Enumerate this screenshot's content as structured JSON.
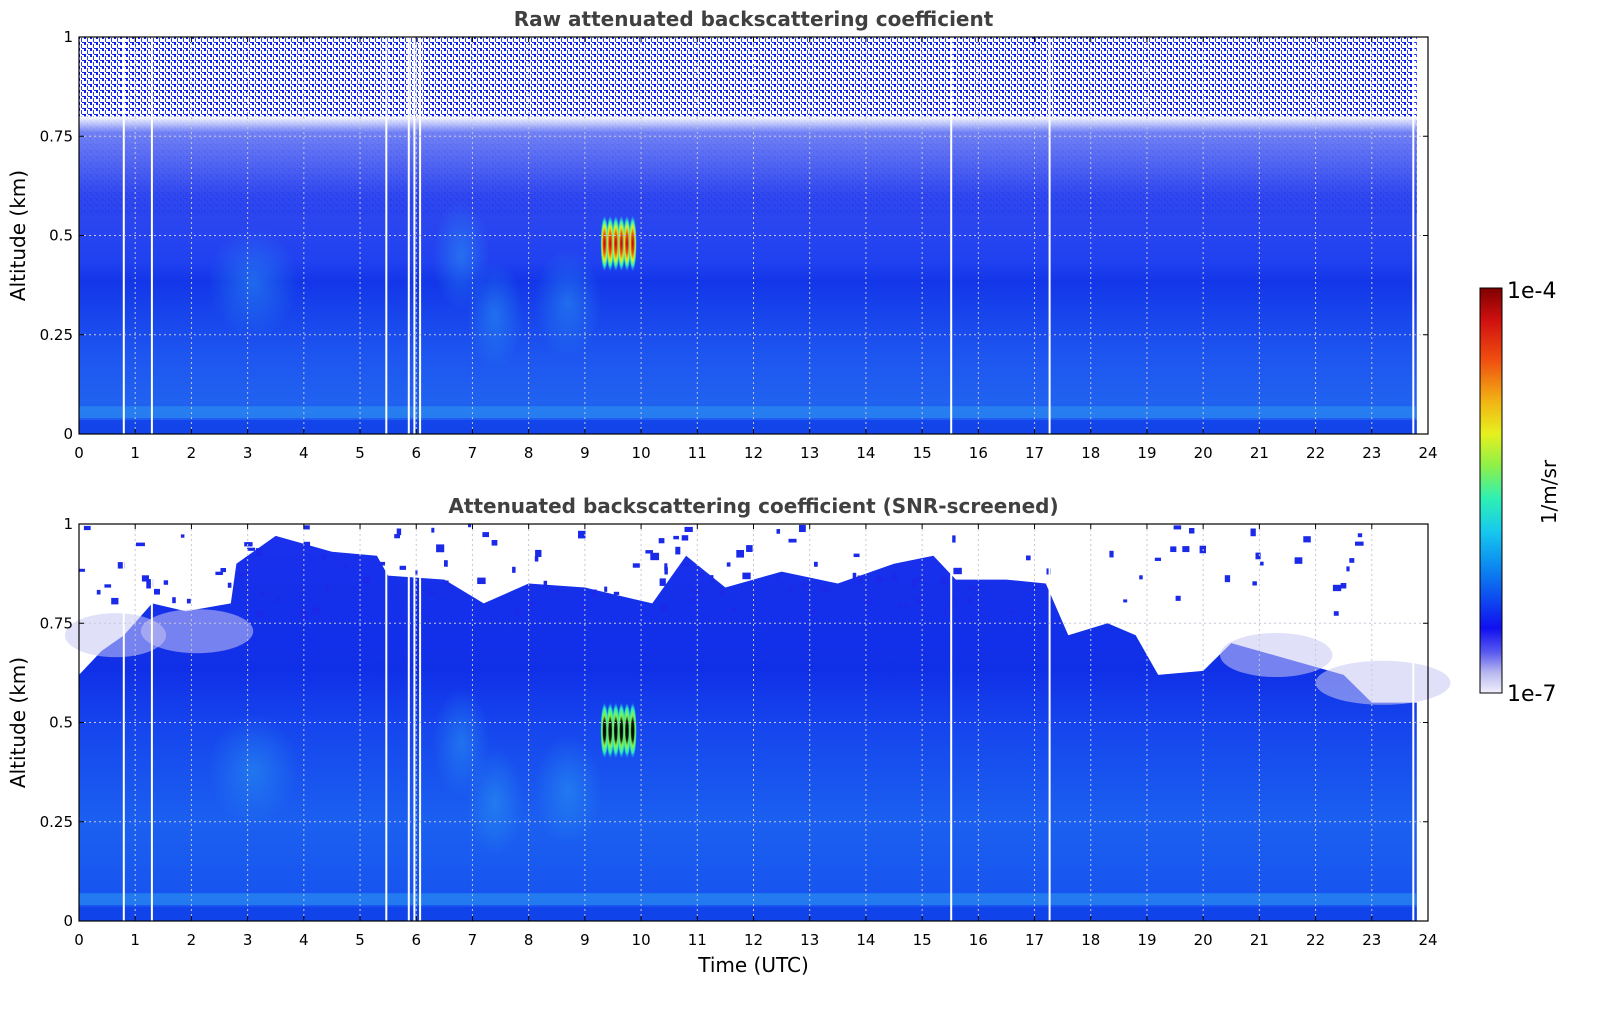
{
  "chart_data": [
    {
      "type": "heatmap",
      "title": "Raw attenuated backscattering coefficient",
      "xlabel": "",
      "ylabel": "Altitude (km)",
      "xlim": [
        0,
        24
      ],
      "ylim": [
        0,
        1
      ],
      "x_ticks": [
        "0",
        "1",
        "2",
        "3",
        "4",
        "5",
        "6",
        "7",
        "8",
        "9",
        "10",
        "11",
        "12",
        "13",
        "14",
        "15",
        "16",
        "17",
        "18",
        "19",
        "20",
        "21",
        "22",
        "23",
        "24"
      ],
      "y_ticks": [
        "0",
        "0.25",
        "0.5",
        "0.75",
        "1"
      ],
      "grid": true,
      "data_gaps_utc": [
        0.78,
        1.28,
        5.45,
        5.85,
        5.95,
        6.05,
        15.5,
        17.25,
        23.72
      ],
      "features": {
        "strong_echo": {
          "x_range": [
            9.3,
            9.9
          ],
          "y_range": [
            0.41,
            0.55
          ]
        }
      }
    },
    {
      "type": "heatmap",
      "title": "Attenuated backscattering coefficient (SNR-screened)",
      "xlabel": "Time (UTC)",
      "ylabel": "Altitude (km)",
      "xlim": [
        0,
        24
      ],
      "ylim": [
        0,
        1
      ],
      "x_ticks": [
        "0",
        "1",
        "2",
        "3",
        "4",
        "5",
        "6",
        "7",
        "8",
        "9",
        "10",
        "11",
        "12",
        "13",
        "14",
        "15",
        "16",
        "17",
        "18",
        "19",
        "20",
        "21",
        "22",
        "23",
        "24"
      ],
      "y_ticks": [
        "0",
        "0.25",
        "0.5",
        "0.75",
        "1"
      ],
      "grid": true,
      "data_gaps_utc": [
        0.78,
        1.28,
        5.45,
        5.85,
        5.95,
        6.05,
        15.5,
        17.25,
        23.72
      ],
      "features": {
        "strong_echo": {
          "x_range": [
            9.3,
            9.9
          ],
          "y_range": [
            0.41,
            0.55
          ]
        }
      }
    }
  ],
  "colorbar": {
    "label": "1/m/sr",
    "min_label": "1e-7",
    "max_label": "1e-4",
    "colors": [
      "#f2f0fb",
      "#b8b8f0",
      "#5a5af0",
      "#1010f0",
      "#0d50f0",
      "#0c8ff0",
      "#17c9ee",
      "#2ef0b4",
      "#8cf04a",
      "#e6f01e",
      "#f2b414",
      "#f05010",
      "#d01010",
      "#800000"
    ]
  },
  "colors": {
    "background_blue": "#1650f0",
    "deep_blue": "#0a2ce8",
    "light_blue": "#2a8cf0",
    "text_title": "#404040"
  }
}
